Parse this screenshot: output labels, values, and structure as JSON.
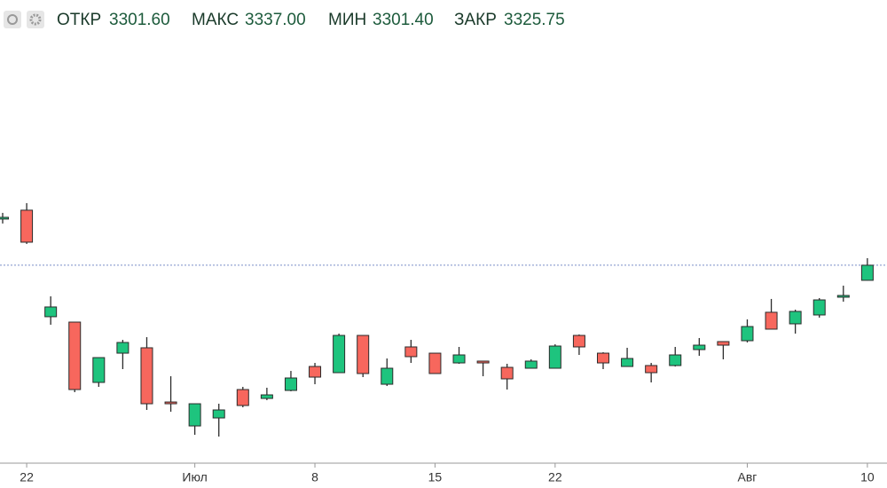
{
  "header": {
    "labels": [
      "ОТКР",
      "МАКС",
      "МИН",
      "ЗАКР"
    ],
    "values": [
      "3301.60",
      "3337.00",
      "3301.40",
      "3325.75"
    ]
  },
  "chart_data": {
    "type": "candlestick",
    "categories": [
      null,
      "22",
      null,
      null,
      null,
      null,
      null,
      null,
      "Июл",
      null,
      null,
      null,
      null,
      "8",
      null,
      null,
      null,
      null,
      "15",
      null,
      null,
      null,
      null,
      "22",
      null,
      null,
      null,
      null,
      null,
      null,
      null,
      "Авг",
      null,
      null,
      null,
      null,
      "10"
    ],
    "open": [
      3399.6,
      3413.8,
      3243.4,
      3234.8,
      3138.3,
      3185.1,
      3193.7,
      3107.0,
      3068.7,
      3081.5,
      3126.9,
      3112.7,
      3125.5,
      3163.8,
      3153.9,
      3213.5,
      3135.4,
      3195.1,
      3185.1,
      3169.5,
      3172.4,
      3162.4,
      3161.0,
      3161.0,
      3213.5,
      3185.1,
      3163.8,
      3165.3,
      3165.3,
      3190.8,
      3203.6,
      3205.0,
      3250.5,
      3232.0,
      3246.2,
      3274.6,
      3301.6
    ],
    "high": [
      3409.5,
      3425.1,
      3276.0,
      3234.8,
      3178.0,
      3206.4,
      3210.7,
      3148.2,
      3104.2,
      3104.2,
      3131.2,
      3129.8,
      3156.7,
      3169.5,
      3216.4,
      3213.5,
      3176.6,
      3206.4,
      3185.1,
      3195.1,
      3172.4,
      3168.1,
      3175.2,
      3199.3,
      3215.0,
      3186.6,
      3193.7,
      3169.5,
      3195.1,
      3209.3,
      3203.6,
      3239.1,
      3271.8,
      3254.7,
      3273.2,
      3293.1,
      3337.0
    ],
    "low": [
      3392.5,
      3359.8,
      3230.6,
      3122.7,
      3131.2,
      3159.6,
      3094.3,
      3091.4,
      3054.5,
      3051.7,
      3098.5,
      3109.9,
      3124.1,
      3135.4,
      3153.9,
      3146.8,
      3132.6,
      3169.5,
      3152.5,
      3168.1,
      3148.2,
      3126.9,
      3161.0,
      3161.0,
      3182.3,
      3159.6,
      3163.8,
      3138.3,
      3163.8,
      3180.9,
      3175.2,
      3202.2,
      3223.5,
      3216.4,
      3241.9,
      3267.5,
      3301.4
    ],
    "close": [
      3402.4,
      3362.6,
      3259.0,
      3126.9,
      3178.0,
      3202.2,
      3104.2,
      3104.2,
      3104.2,
      3094.3,
      3101.4,
      3118.4,
      3145.4,
      3146.8,
      3213.5,
      3152.5,
      3161.0,
      3179.5,
      3152.5,
      3182.3,
      3169.5,
      3144.0,
      3172.4,
      3196.5,
      3195.1,
      3169.5,
      3176.6,
      3153.9,
      3182.3,
      3197.9,
      3197.9,
      3227.7,
      3223.5,
      3251.9,
      3270.3,
      3277.4,
      3325.75
    ],
    "up_color": "#1ec47e",
    "down_color": "#f7675d",
    "outline_color": "#2b2b2b",
    "price_line": true,
    "price_line_color": "#7b8fc8",
    "ylim": [
      3012,
      3750
    ]
  }
}
